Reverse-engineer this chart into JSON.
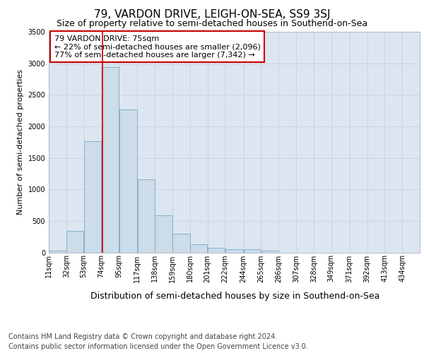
{
  "title": "79, VARDON DRIVE, LEIGH-ON-SEA, SS9 3SJ",
  "subtitle": "Size of property relative to semi-detached houses in Southend-on-Sea",
  "xlabel": "Distribution of semi-detached houses by size in Southend-on-Sea",
  "ylabel": "Number of semi-detached properties",
  "footer1": "Contains HM Land Registry data © Crown copyright and database right 2024.",
  "footer2": "Contains public sector information licensed under the Open Government Licence v3.0.",
  "annotation_line1": "79 VARDON DRIVE: 75sqm",
  "annotation_line2": "← 22% of semi-detached houses are smaller (2,096)",
  "annotation_line3": "77% of semi-detached houses are larger (7,342) →",
  "property_size": 75,
  "bar_left_edges": [
    11,
    32,
    53,
    74,
    95,
    117,
    138,
    159,
    180,
    201,
    222,
    244,
    265,
    286,
    307,
    328,
    349,
    371,
    392,
    413
  ],
  "bar_widths": [
    21,
    21,
    21,
    21,
    22,
    21,
    21,
    21,
    21,
    21,
    22,
    21,
    21,
    21,
    21,
    21,
    22,
    21,
    21,
    21
  ],
  "bar_heights": [
    30,
    340,
    1760,
    2940,
    2270,
    1160,
    590,
    300,
    130,
    70,
    50,
    50,
    30,
    0,
    0,
    0,
    0,
    0,
    0,
    0
  ],
  "tick_labels": [
    "11sqm",
    "32sqm",
    "53sqm",
    "74sqm",
    "95sqm",
    "117sqm",
    "138sqm",
    "159sqm",
    "180sqm",
    "201sqm",
    "222sqm",
    "244sqm",
    "265sqm",
    "286sqm",
    "307sqm",
    "328sqm",
    "349sqm",
    "371sqm",
    "392sqm",
    "413sqm",
    "434sqm"
  ],
  "bar_color": "#ccdce8",
  "bar_edge_color": "#7aa8c8",
  "red_line_color": "#cc0000",
  "annotation_box_color": "#cc0000",
  "grid_color": "#c8d0da",
  "background_color": "#dce6f0",
  "ylim": [
    0,
    3500
  ],
  "yticks": [
    0,
    500,
    1000,
    1500,
    2000,
    2500,
    3000,
    3500
  ],
  "title_fontsize": 11,
  "subtitle_fontsize": 9,
  "xlabel_fontsize": 9,
  "ylabel_fontsize": 8,
  "tick_fontsize": 7,
  "annotation_fontsize": 8,
  "footer_fontsize": 7
}
